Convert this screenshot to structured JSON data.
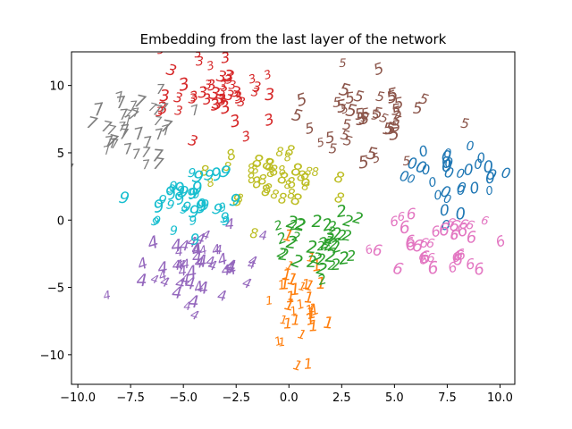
{
  "chart_data": {
    "type": "scatter",
    "title": "Embedding from the last layer of the network",
    "xlabel": "",
    "ylabel": "",
    "xlim": [
      -10.3,
      10.7
    ],
    "ylim": [
      -12.2,
      12.5
    ],
    "xticks": [
      -10.0,
      -7.5,
      -5.0,
      -2.5,
      0.0,
      2.5,
      5.0,
      7.5,
      10.0
    ],
    "xtick_labels": [
      "−10.0",
      "−7.5",
      "−5.0",
      "−2.5",
      "0.0",
      "2.5",
      "5.0",
      "7.5",
      "10.0"
    ],
    "yticks": [
      10,
      5,
      0,
      -5,
      -10
    ],
    "ytick_labels": [
      "10",
      "5",
      "0",
      "−5",
      "−10"
    ],
    "grid": false,
    "marker_style": "digit glyphs",
    "series": [
      {
        "digit": "0",
        "color": "#1f77b4",
        "center": [
          7.8,
          3.0
        ],
        "spread": [
          1.6,
          1.9
        ],
        "count": 32
      },
      {
        "digit": "1",
        "color": "#ff7f0e",
        "center": [
          0.4,
          -6.8
        ],
        "spread": [
          1.0,
          2.8
        ],
        "count": 34
      },
      {
        "digit": "2",
        "color": "#2ca02c",
        "center": [
          1.4,
          -2.0
        ],
        "spread": [
          1.6,
          1.6
        ],
        "count": 40
      },
      {
        "digit": "3",
        "color": "#d62728",
        "center": [
          -3.2,
          9.0
        ],
        "spread": [
          1.8,
          2.0
        ],
        "count": 46
      },
      {
        "digit": "4",
        "color": "#9467bd",
        "center": [
          -4.0,
          -3.8
        ],
        "spread": [
          1.8,
          1.8
        ],
        "count": 50
      },
      {
        "digit": "5",
        "color": "#8c564b",
        "center": [
          3.4,
          7.5
        ],
        "spread": [
          2.0,
          2.3
        ],
        "count": 44
      },
      {
        "digit": "6",
        "color": "#e377c2",
        "center": [
          6.6,
          -2.2
        ],
        "spread": [
          2.2,
          1.6
        ],
        "count": 36
      },
      {
        "digit": "7",
        "color": "#7f7f7f",
        "center": [
          -7.5,
          6.8
        ],
        "spread": [
          1.7,
          1.8
        ],
        "count": 40
      },
      {
        "digit": "8",
        "color": "#bcbd22",
        "center": [
          -0.9,
          3.2
        ],
        "spread": [
          1.8,
          1.5
        ],
        "count": 38
      },
      {
        "digit": "9",
        "color": "#17becf",
        "center": [
          -5.2,
          1.2
        ],
        "spread": [
          1.7,
          1.8
        ],
        "count": 36
      }
    ]
  }
}
